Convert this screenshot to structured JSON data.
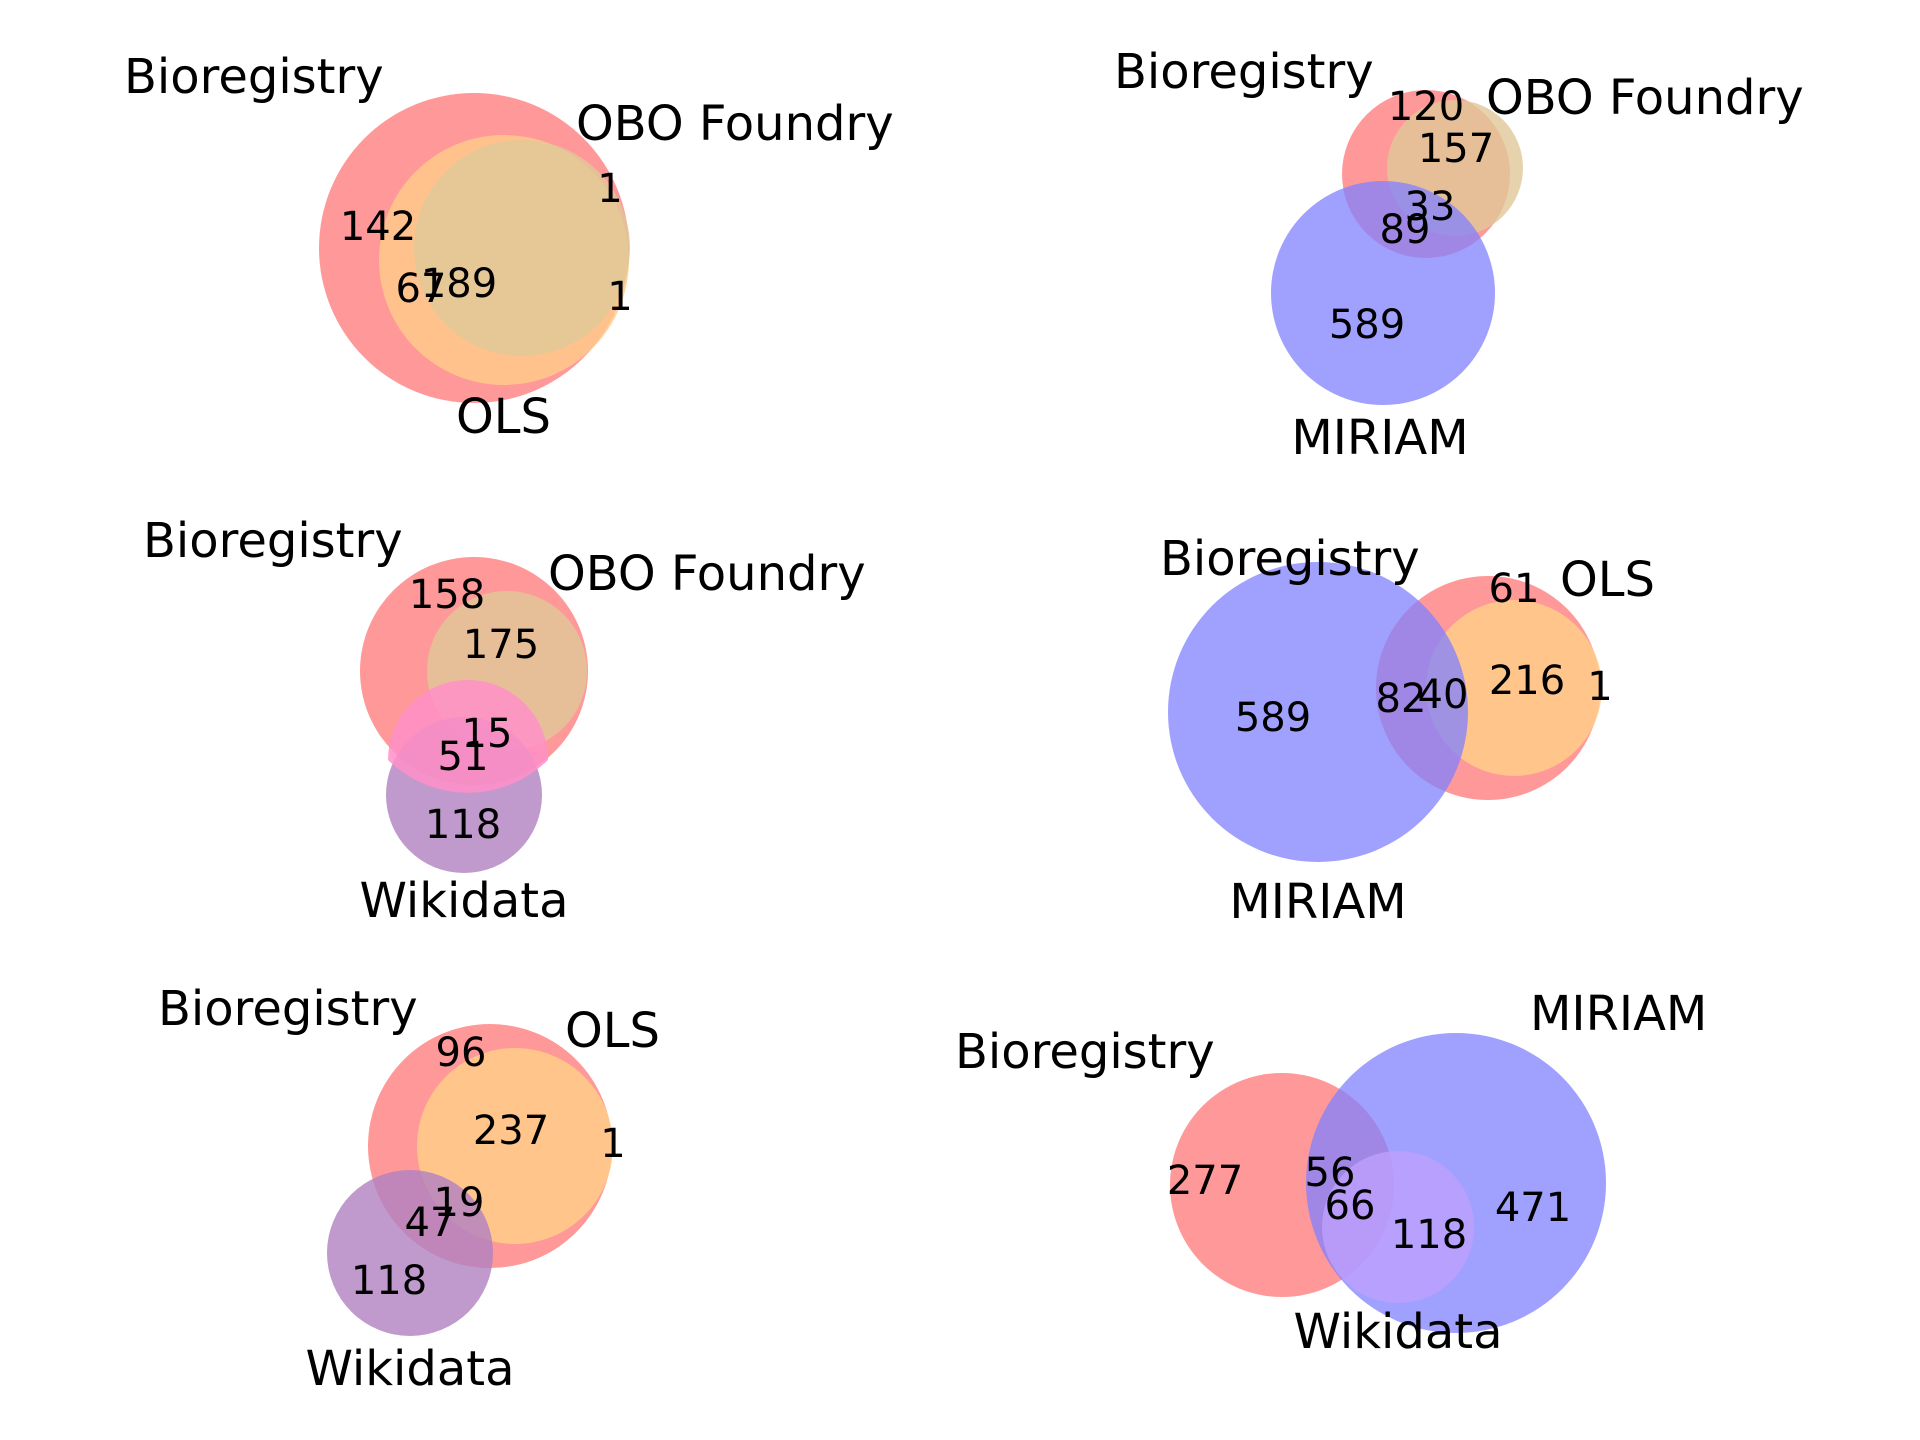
{
  "colors": {
    "set_a": "#ff8080",
    "set_b": "#ffcc88",
    "set_c_miriam": "#8080ff",
    "set_c_wikidata": "#b080c0",
    "overlap_ab": "#e0c898",
    "overlap_ac_wikidata": "#ff8fc8",
    "overlap_bc": "#c0a0ff"
  },
  "diagrams": [
    {
      "id": "bioregistry-obo-ols",
      "sets": [
        "Bioregistry",
        "OBO Foundry",
        "OLS"
      ],
      "regions": {
        "only_bioregistry": "142",
        "bioregistry_ols": "67",
        "all_three": "189",
        "obo_ols_top": "1",
        "ols_only": "1"
      }
    },
    {
      "id": "bioregistry-obo-miriam",
      "sets": [
        "Bioregistry",
        "OBO Foundry",
        "MIRIAM"
      ],
      "regions": {
        "only_bioregistry": "120",
        "bioregistry_obo": "157",
        "all_three": "33",
        "bioregistry_miriam": "89",
        "only_miriam": "589"
      }
    },
    {
      "id": "bioregistry-obo-wikidata",
      "sets": [
        "Bioregistry",
        "OBO Foundry",
        "Wikidata"
      ],
      "regions": {
        "only_bioregistry": "158",
        "bioregistry_obo": "175",
        "all_three": "15",
        "bioregistry_wikidata": "51",
        "only_wikidata": "118"
      }
    },
    {
      "id": "bioregistry-ols-miriam",
      "sets": [
        "Bioregistry",
        "OLS",
        "MIRIAM"
      ],
      "regions": {
        "only_bioregistry": "61",
        "bioregistry_ols": "216",
        "ols_only": "1",
        "bioregistry_miriam": "82",
        "all_three": "40",
        "only_miriam": "589"
      }
    },
    {
      "id": "bioregistry-ols-wikidata",
      "sets": [
        "Bioregistry",
        "OLS",
        "Wikidata"
      ],
      "regions": {
        "only_bioregistry": "96",
        "bioregistry_ols": "237",
        "ols_only": "1",
        "all_three": "19",
        "bioregistry_wikidata": "47",
        "only_wikidata": "118"
      }
    },
    {
      "id": "bioregistry-miriam-wikidata",
      "sets": [
        "Bioregistry",
        "MIRIAM",
        "Wikidata"
      ],
      "regions": {
        "only_bioregistry": "277",
        "bioregistry_miriam": "56",
        "all_three": "66",
        "miriam_wikidata": "118",
        "only_miriam": "471"
      }
    }
  ]
}
